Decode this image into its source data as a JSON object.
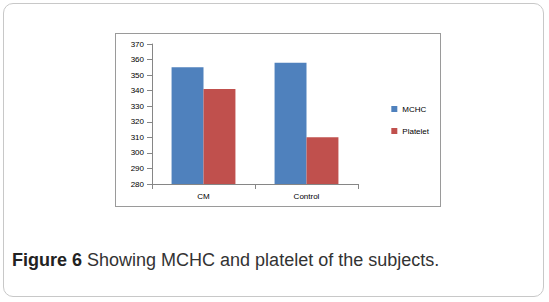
{
  "chart_data": {
    "type": "bar",
    "title": "Figure 6",
    "subtitle": "Showing MCHC and platelet of the subjects.",
    "categories": [
      "CM",
      "Control"
    ],
    "series": [
      {
        "name": "MCHC",
        "color": "#4f81bd",
        "values": [
          355,
          358
        ]
      },
      {
        "name": "Platelet",
        "color": "#c0504d",
        "values": [
          341,
          310
        ]
      }
    ],
    "ylim": [
      280,
      370
    ],
    "yticks": [
      280,
      290,
      300,
      310,
      320,
      330,
      340,
      350,
      360,
      370
    ],
    "grid": false,
    "legend": "right"
  }
}
